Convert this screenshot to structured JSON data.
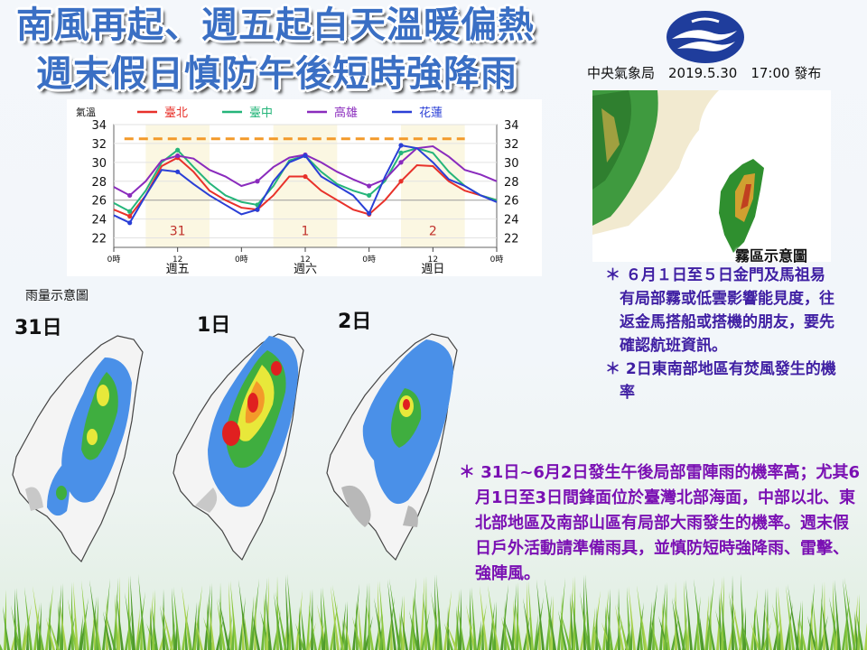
{
  "title": {
    "line1": "南風再起、週五起白天溫暖偏熱",
    "line2": "週末假日慎防午後短時強降雨"
  },
  "issuer": "中央氣象局　2019.5.30　17:00 發布",
  "colors": {
    "taipei": "#e8312a",
    "taichung": "#25b57a",
    "kaohsiung": "#8a2bbd",
    "hualien": "#2a3fd6",
    "threshold": "#f39a2a",
    "title": "#3a6fc4",
    "notes_fog": "#3f1fa3",
    "notes_rain": "#7a10b3"
  },
  "chart_data": {
    "type": "line",
    "ylabel": "氣溫",
    "ylim": [
      21,
      34
    ],
    "yticks": [
      22,
      24,
      26,
      28,
      30,
      32,
      34
    ],
    "x_ticks": [
      "0時",
      "12",
      "0時",
      "12",
      "0時",
      "12",
      "0時"
    ],
    "days": [
      "週五",
      "週六",
      "週日"
    ],
    "day_codes": [
      "31",
      "1",
      "2"
    ],
    "threshold": 32.5,
    "x_hours": [
      0,
      3,
      6,
      9,
      12,
      15,
      18,
      21,
      24,
      27,
      30,
      33,
      36,
      39,
      42,
      45,
      48,
      51,
      54,
      57,
      60,
      63,
      66,
      69,
      72
    ],
    "series": [
      {
        "name": "臺北",
        "color": "#e8312a",
        "values": [
          25,
          24.3,
          26.5,
          29.6,
          30.5,
          29,
          27,
          26,
          25.2,
          25,
          26.5,
          28.5,
          28.5,
          27,
          26,
          25,
          24.5,
          26,
          28,
          29.7,
          29.6,
          28,
          27,
          26.5,
          26
        ]
      },
      {
        "name": "臺中",
        "color": "#25b57a",
        "values": [
          25.7,
          24.8,
          27,
          30,
          31.3,
          29.5,
          27.8,
          26.5,
          25.8,
          25.5,
          27.5,
          30.2,
          30.7,
          29,
          27.7,
          27,
          26.5,
          28,
          31,
          31.5,
          31,
          29,
          27.5,
          26.5,
          26
        ]
      },
      {
        "name": "高雄",
        "color": "#8a2bbd",
        "values": [
          27.4,
          26.5,
          28,
          30.2,
          30.7,
          30.4,
          29.2,
          28.5,
          27.5,
          28,
          29.5,
          30.5,
          30.8,
          30,
          29,
          28.2,
          27.5,
          28.2,
          30,
          31.5,
          31.7,
          30.6,
          29.2,
          28.7,
          28
        ]
      },
      {
        "name": "花蓮",
        "color": "#2a3fd6",
        "values": [
          24.4,
          23.6,
          26.5,
          29.2,
          29,
          27.7,
          26.5,
          25.5,
          24.5,
          25,
          28,
          30,
          30.7,
          28.5,
          27.5,
          26.5,
          24.6,
          28.5,
          31.8,
          31.5,
          30,
          28.2,
          27.5,
          26.5,
          25.8
        ]
      }
    ]
  },
  "rain": {
    "label": "雨量示意圖",
    "days": [
      "31日",
      "1日",
      "2日"
    ]
  },
  "fog": {
    "label": "霧區示意圖",
    "notes": [
      "＊ ６月１日至５日金門及馬祖易有局部霧或低雲影響能見度，往返金馬搭船或搭機的朋友，要先確認航班資訊。",
      "＊ 2日東南部地區有焚風發生的機率"
    ]
  },
  "rain_notes": [
    "＊ 31日~6月2日發生午後局部雷陣雨的機率高；尤其6月1日至3日間鋒面位於臺灣北部海面，中部以北、東北部地區及南部山區有局部大雨發生的機率。週末假日戶外活動請準備雨具，並慎防短時強降雨、雷擊、強陣風。"
  ]
}
